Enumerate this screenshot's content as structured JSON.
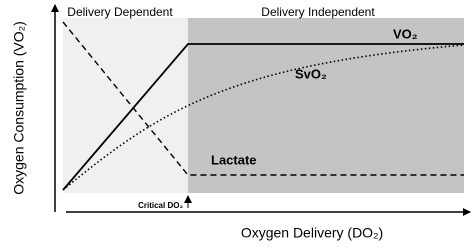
{
  "regions": {
    "dependent": "Delivery  Dependent",
    "independent": "Delivery  Independent"
  },
  "curves": {
    "vo2": "VO₂",
    "svo2": "SvO₂",
    "lactate": "Lactate"
  },
  "axes": {
    "y_label": "Oxygen Consumption (VO₂)",
    "x_label": "Oxygen Delivery (DO₂)"
  },
  "marker": "Critical DO₂"
}
